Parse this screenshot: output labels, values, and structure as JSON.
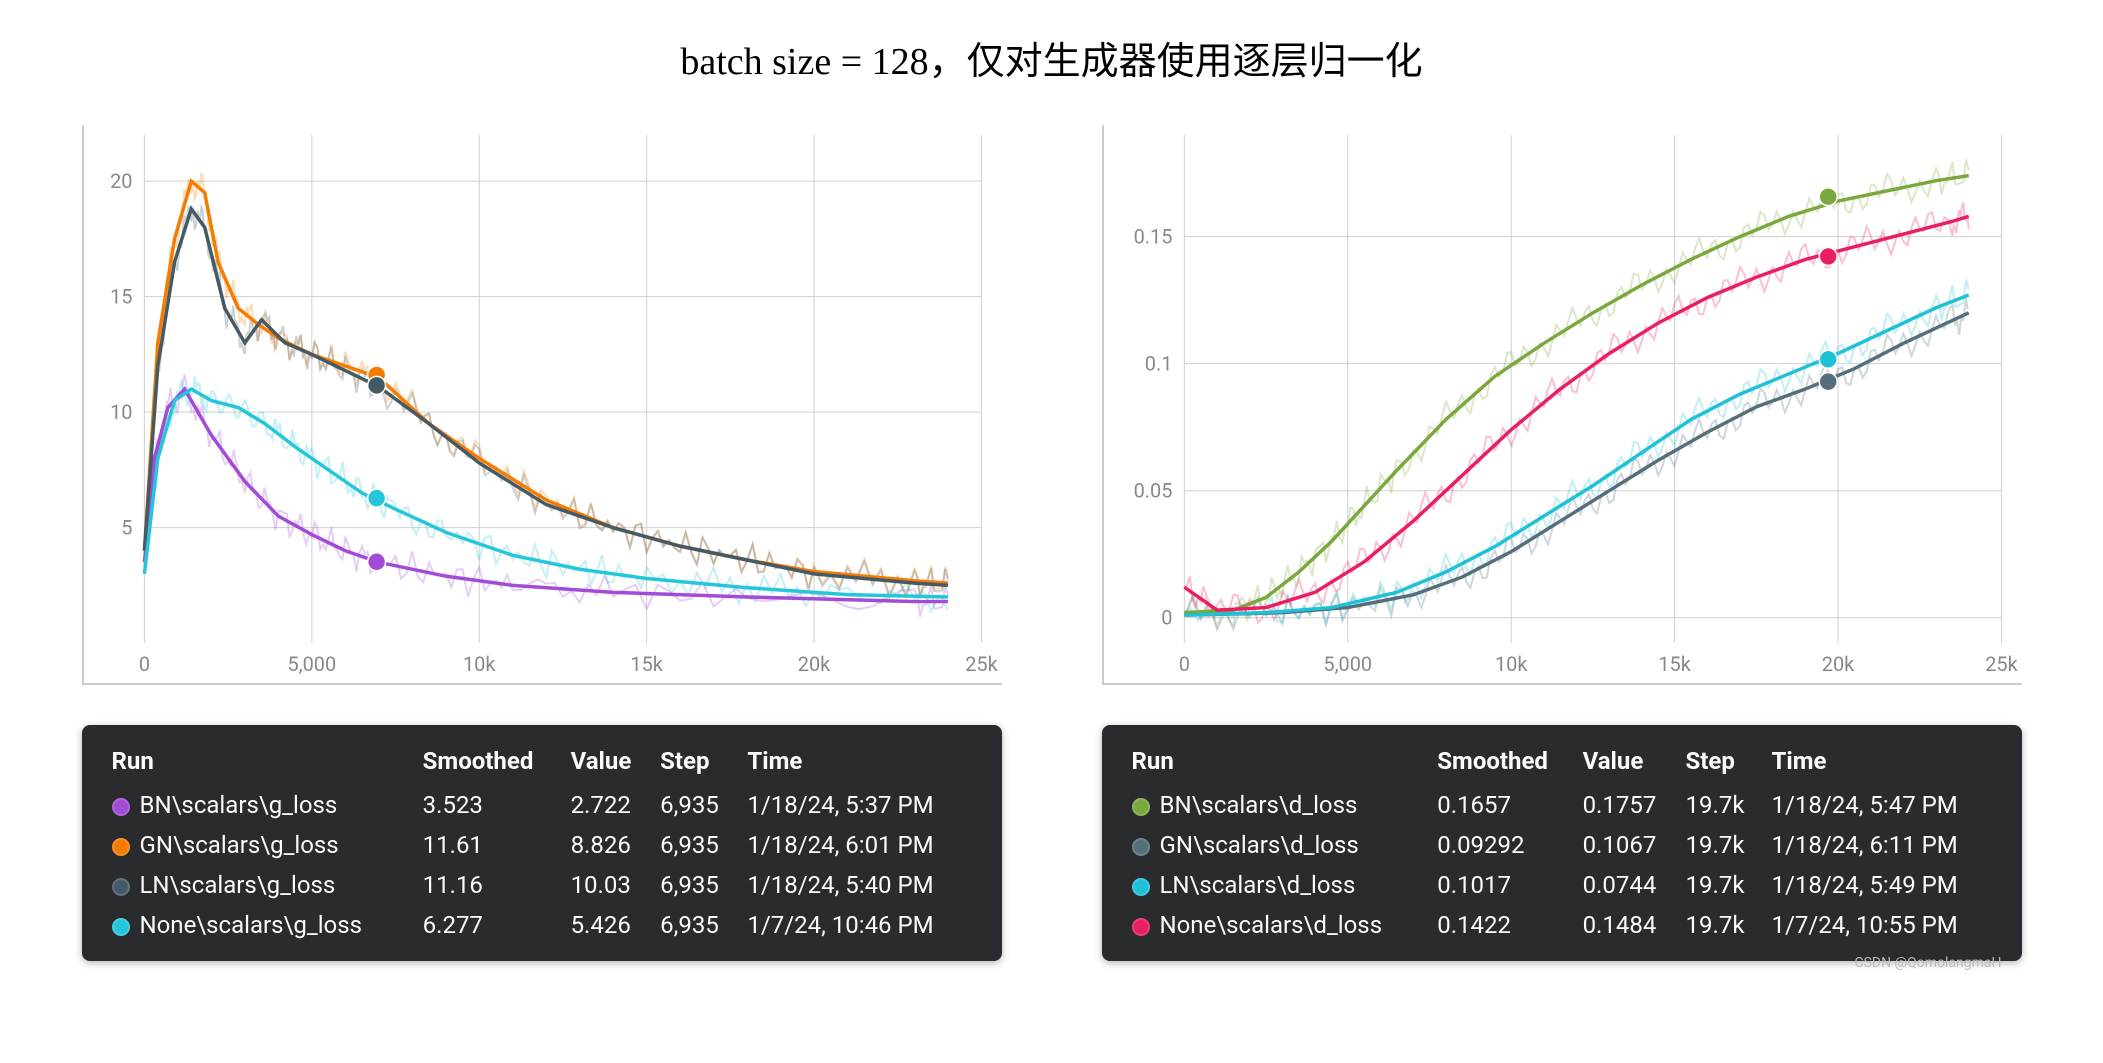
{
  "title": "batch size = 128，仅对生成器使用逐层归一化",
  "watermark": "CSDN @QomolangmaH",
  "headers": {
    "run": "Run",
    "smoothed": "Smoothed",
    "value": "Value",
    "step": "Step",
    "time": "Time"
  },
  "left_chart": {
    "type": "line",
    "xlim": [
      0,
      25000
    ],
    "ylim": [
      0,
      22
    ],
    "xticks": [
      0,
      5000,
      10000,
      15000,
      20000,
      25000
    ],
    "xtick_labels": [
      "0",
      "5,000",
      "10k",
      "15k",
      "20k",
      "25k"
    ],
    "yticks": [
      5,
      10,
      15,
      20
    ],
    "ytick_labels": [
      "5",
      "10",
      "15",
      "20"
    ],
    "grid_color": "#d0d0d0",
    "tick_fontsize": 20,
    "tick_color": "#888",
    "background": "#ffffff",
    "series": [
      {
        "name": "BN\\scalars\\g_loss",
        "color": "#a24bd6",
        "marker_step": 6935,
        "marker_value": 3.523,
        "points": [
          [
            0,
            3.5
          ],
          [
            300,
            8.0
          ],
          [
            700,
            10.2
          ],
          [
            1200,
            11.0
          ],
          [
            2000,
            9.0
          ],
          [
            3000,
            7.0
          ],
          [
            4000,
            5.5
          ],
          [
            5000,
            4.7
          ],
          [
            6000,
            4.0
          ],
          [
            7000,
            3.5
          ],
          [
            9000,
            2.9
          ],
          [
            11000,
            2.5
          ],
          [
            14000,
            2.2
          ],
          [
            18000,
            2.0
          ],
          [
            23000,
            1.8
          ],
          [
            24000,
            1.8
          ]
        ]
      },
      {
        "name": "GN\\scalars\\g_loss",
        "color": "#f57c00",
        "marker_step": 6935,
        "marker_value": 11.61,
        "points": [
          [
            0,
            4.0
          ],
          [
            400,
            13.0
          ],
          [
            900,
            17.5
          ],
          [
            1400,
            20.0
          ],
          [
            1800,
            19.5
          ],
          [
            2200,
            16.5
          ],
          [
            2800,
            14.5
          ],
          [
            3400,
            13.8
          ],
          [
            4000,
            13.2
          ],
          [
            5000,
            12.5
          ],
          [
            6000,
            12.0
          ],
          [
            7000,
            11.5
          ],
          [
            8500,
            9.5
          ],
          [
            10000,
            8.0
          ],
          [
            12000,
            6.2
          ],
          [
            14000,
            5.0
          ],
          [
            16000,
            4.2
          ],
          [
            18000,
            3.6
          ],
          [
            20000,
            3.1
          ],
          [
            23000,
            2.7
          ],
          [
            24000,
            2.6
          ]
        ]
      },
      {
        "name": "LN\\scalars\\g_loss",
        "color": "#455a64",
        "marker_step": 6935,
        "marker_value": 11.16,
        "points": [
          [
            0,
            4.0
          ],
          [
            400,
            12.0
          ],
          [
            900,
            16.5
          ],
          [
            1400,
            18.8
          ],
          [
            1800,
            18.0
          ],
          [
            2400,
            14.5
          ],
          [
            3000,
            13.0
          ],
          [
            3500,
            14.0
          ],
          [
            4200,
            13.0
          ],
          [
            5000,
            12.5
          ],
          [
            6000,
            11.8
          ],
          [
            7000,
            11.1
          ],
          [
            8500,
            9.5
          ],
          [
            10000,
            7.8
          ],
          [
            12000,
            6.0
          ],
          [
            14000,
            5.0
          ],
          [
            16000,
            4.2
          ],
          [
            18000,
            3.6
          ],
          [
            20000,
            3.0
          ],
          [
            23000,
            2.6
          ],
          [
            24000,
            2.5
          ]
        ]
      },
      {
        "name": "None\\scalars\\g_loss",
        "color": "#26c6da",
        "marker_step": 6935,
        "marker_value": 6.277,
        "points": [
          [
            0,
            3.0
          ],
          [
            400,
            8.0
          ],
          [
            900,
            10.5
          ],
          [
            1400,
            11.0
          ],
          [
            2000,
            10.5
          ],
          [
            2800,
            10.2
          ],
          [
            3600,
            9.5
          ],
          [
            4500,
            8.5
          ],
          [
            5500,
            7.5
          ],
          [
            6500,
            6.5
          ],
          [
            7500,
            5.8
          ],
          [
            9000,
            4.8
          ],
          [
            11000,
            3.8
          ],
          [
            13000,
            3.2
          ],
          [
            15000,
            2.8
          ],
          [
            18000,
            2.4
          ],
          [
            21000,
            2.1
          ],
          [
            24000,
            2.0
          ]
        ]
      }
    ],
    "legend_rows": [
      {
        "name": "BN\\scalars\\g_loss",
        "color": "#a24bd6",
        "smoothed": "3.523",
        "value": "2.722",
        "step": "6,935",
        "time": "1/18/24, 5:37 PM"
      },
      {
        "name": "GN\\scalars\\g_loss",
        "color": "#f57c00",
        "smoothed": "11.61",
        "value": "8.826",
        "step": "6,935",
        "time": "1/18/24, 6:01 PM"
      },
      {
        "name": "LN\\scalars\\g_loss",
        "color": "#455a64",
        "smoothed": "11.16",
        "value": "10.03",
        "step": "6,935",
        "time": "1/18/24, 5:40 PM"
      },
      {
        "name": "None\\scalars\\g_loss",
        "color": "#26c6da",
        "smoothed": "6.277",
        "value": "5.426",
        "step": "6,935",
        "time": "1/7/24, 10:46 PM"
      }
    ]
  },
  "right_chart": {
    "type": "line",
    "xlim": [
      0,
      25000
    ],
    "ylim": [
      -0.01,
      0.19
    ],
    "xticks": [
      0,
      5000,
      10000,
      15000,
      20000,
      25000
    ],
    "xtick_labels": [
      "0",
      "5,000",
      "10k",
      "15k",
      "20k",
      "25k"
    ],
    "yticks": [
      0,
      0.05,
      0.1,
      0.15
    ],
    "ytick_labels": [
      "0",
      "0.05",
      "0.1",
      "0.15"
    ],
    "grid_color": "#d0d0d0",
    "tick_fontsize": 20,
    "tick_color": "#888",
    "background": "#ffffff",
    "series": [
      {
        "name": "BN\\scalars\\d_loss",
        "color": "#7ba83d",
        "marker_step": 19700,
        "marker_value": 0.1657,
        "points": [
          [
            0,
            0.002
          ],
          [
            1500,
            0.003
          ],
          [
            2500,
            0.008
          ],
          [
            3500,
            0.018
          ],
          [
            4500,
            0.03
          ],
          [
            5500,
            0.044
          ],
          [
            6500,
            0.058
          ],
          [
            8000,
            0.078
          ],
          [
            9500,
            0.095
          ],
          [
            11000,
            0.108
          ],
          [
            12500,
            0.12
          ],
          [
            14000,
            0.131
          ],
          [
            15500,
            0.141
          ],
          [
            17000,
            0.15
          ],
          [
            18500,
            0.158
          ],
          [
            20000,
            0.164
          ],
          [
            21500,
            0.168
          ],
          [
            23000,
            0.172
          ],
          [
            24000,
            0.174
          ]
        ]
      },
      {
        "name": "GN\\scalars\\d_loss",
        "color": "#546e7a",
        "marker_step": 19700,
        "marker_value": 0.09292,
        "points": [
          [
            0,
            0.001
          ],
          [
            3000,
            0.002
          ],
          [
            5000,
            0.004
          ],
          [
            7000,
            0.009
          ],
          [
            8500,
            0.016
          ],
          [
            10000,
            0.026
          ],
          [
            11500,
            0.038
          ],
          [
            13000,
            0.05
          ],
          [
            14500,
            0.062
          ],
          [
            16000,
            0.073
          ],
          [
            17500,
            0.083
          ],
          [
            19000,
            0.09
          ],
          [
            20500,
            0.098
          ],
          [
            22000,
            0.108
          ],
          [
            23500,
            0.117
          ],
          [
            24000,
            0.12
          ]
        ]
      },
      {
        "name": "LN\\scalars\\d_loss",
        "color": "#1fc1d6",
        "marker_step": 19700,
        "marker_value": 0.1017,
        "points": [
          [
            0,
            0.001
          ],
          [
            2500,
            0.002
          ],
          [
            4500,
            0.004
          ],
          [
            6500,
            0.01
          ],
          [
            8000,
            0.018
          ],
          [
            9500,
            0.028
          ],
          [
            11000,
            0.04
          ],
          [
            12500,
            0.052
          ],
          [
            14000,
            0.065
          ],
          [
            15500,
            0.078
          ],
          [
            17000,
            0.088
          ],
          [
            18500,
            0.096
          ],
          [
            20000,
            0.104
          ],
          [
            21500,
            0.113
          ],
          [
            23000,
            0.122
          ],
          [
            24000,
            0.127
          ]
        ]
      },
      {
        "name": "None\\scalars\\d_loss",
        "color": "#e91e63",
        "marker_step": 19700,
        "marker_value": 0.1422,
        "points": [
          [
            0,
            0.012
          ],
          [
            1000,
            0.003
          ],
          [
            2500,
            0.004
          ],
          [
            4000,
            0.01
          ],
          [
            5500,
            0.022
          ],
          [
            7000,
            0.038
          ],
          [
            8500,
            0.056
          ],
          [
            10000,
            0.074
          ],
          [
            11500,
            0.09
          ],
          [
            13000,
            0.104
          ],
          [
            14500,
            0.116
          ],
          [
            16000,
            0.126
          ],
          [
            17500,
            0.134
          ],
          [
            19000,
            0.141
          ],
          [
            20500,
            0.146
          ],
          [
            22000,
            0.151
          ],
          [
            23500,
            0.156
          ],
          [
            24000,
            0.158
          ]
        ]
      }
    ],
    "legend_rows": [
      {
        "name": "BN\\scalars\\d_loss",
        "color": "#7ba83d",
        "smoothed": "0.1657",
        "value": "0.1757",
        "step": "19.7k",
        "time": "1/18/24, 5:47 PM"
      },
      {
        "name": "GN\\scalars\\d_loss",
        "color": "#546e7a",
        "smoothed": "0.09292",
        "value": "0.1067",
        "step": "19.7k",
        "time": "1/18/24, 6:11 PM"
      },
      {
        "name": "LN\\scalars\\d_loss",
        "color": "#1fc1d6",
        "smoothed": "0.1017",
        "value": "0.0744",
        "step": "19.7k",
        "time": "1/18/24, 5:49 PM"
      },
      {
        "name": "None\\scalars\\d_loss",
        "color": "#e91e63",
        "smoothed": "0.1422",
        "value": "0.1484",
        "step": "19.7k",
        "time": "1/7/24, 10:55 PM"
      }
    ]
  }
}
